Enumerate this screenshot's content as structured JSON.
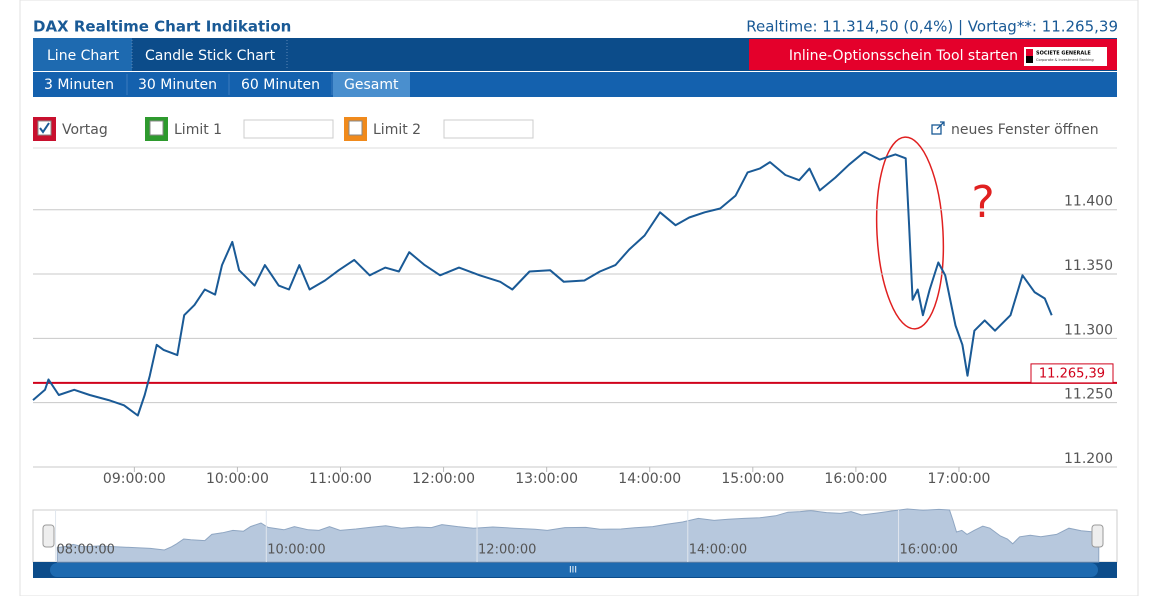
{
  "header": {
    "title": "DAX Realtime Chart Indikation",
    "quote": "Realtime: 11.314,50 (0,4%) | Vortag**: 11.265,39"
  },
  "tabs": [
    "Line Chart",
    "Candle Stick Chart"
  ],
  "tool_button": "Inline-Optionsschein Tool starten",
  "logo": {
    "name": "SOCIETE GENERALE",
    "tagline": "Corporate & Investment Banking"
  },
  "ranges": [
    "3 Minuten",
    "30 Minuten",
    "60 Minuten",
    "Gesamt"
  ],
  "options": [
    {
      "label": "Vortag",
      "checked": true,
      "color": "#c8102e"
    },
    {
      "label": "Limit 1",
      "checked": false,
      "color": "#2e9a2e"
    },
    {
      "label": "Limit 2",
      "checked": false,
      "color": "#f08a1c"
    }
  ],
  "link": "neues Fenster öffnen",
  "chart_data": {
    "type": "line",
    "x": [
      481,
      488,
      490,
      496,
      505,
      514,
      525,
      534,
      542,
      546,
      549,
      553,
      557,
      565,
      569,
      575,
      581,
      587,
      591,
      597,
      601,
      610,
      616,
      624,
      630,
      636,
      642,
      651,
      659,
      668,
      677,
      686,
      694,
      700,
      709,
      718,
      729,
      741,
      753,
      760,
      770,
      782,
      790,
      802,
      811,
      820,
      828,
      837,
      846,
      855,
      863,
      872,
      881,
      890,
      897,
      904,
      910,
      919,
      927,
      933,
      939,
      948,
      956,
      965,
      974,
      983,
      989,
      991,
      993,
      996,
      999,
      1003,
      1008,
      1012,
      1018,
      1022,
      1025,
      1029,
      1035,
      1041,
      1050,
      1057,
      1064,
      1070,
      1074
    ],
    "series": [
      {
        "color": "#1a5a96",
        "values": [
          11252,
          11260,
          11268,
          11256,
          11260,
          11256,
          11252,
          11248,
          11240,
          11256,
          11271,
          11295,
          11291,
          11287,
          11318,
          11326,
          11338,
          11334,
          11357,
          11375,
          11353,
          11341,
          11357,
          11341,
          11338,
          11357,
          11338,
          11345,
          11353,
          11361,
          11349,
          11355,
          11352,
          11367,
          11357,
          11349,
          11355,
          11349,
          11344,
          11338,
          11352,
          11353,
          11344,
          11345,
          11352,
          11357,
          11369,
          11380,
          11398,
          11388,
          11394,
          11398,
          11401,
          11411,
          11429,
          11432,
          11437,
          11427,
          11423,
          11432,
          11415,
          11425,
          11435,
          11445,
          11439,
          11443,
          11440,
          11388,
          11330,
          11338,
          11318,
          11338,
          11359,
          11349,
          11310,
          11295,
          11271,
          11306,
          11314,
          11306,
          11318,
          11349,
          11336,
          11331,
          11318
        ]
      }
    ],
    "xlim": [
      481,
      1112
    ],
    "ylim": [
      11200,
      11448
    ],
    "xticks": [
      {
        "value": 540,
        "label": "09:00:00"
      },
      {
        "value": 600,
        "label": "10:00:00"
      },
      {
        "value": 660,
        "label": "11:00:00"
      },
      {
        "value": 720,
        "label": "12:00:00"
      },
      {
        "value": 780,
        "label": "13:00:00"
      },
      {
        "value": 840,
        "label": "14:00:00"
      },
      {
        "value": 900,
        "label": "15:00:00"
      },
      {
        "value": 960,
        "label": "16:00:00"
      },
      {
        "value": 1020,
        "label": "17:00:00"
      }
    ],
    "yticks": [
      {
        "value": 11200,
        "label": "11.200"
      },
      {
        "value": 11250,
        "label": "11.250"
      },
      {
        "value": 11300,
        "label": "11.300"
      },
      {
        "value": 11350,
        "label": "11.350"
      },
      {
        "value": 11400,
        "label": "11.400"
      }
    ],
    "grid": true,
    "reference": {
      "value": 11265.39,
      "label": "11.265,39",
      "color": "#d0021b"
    },
    "annotation": "?",
    "navigator": {
      "xlim": [
        474,
        1073
      ],
      "ylim": [
        11200,
        11460
      ],
      "xticks": [
        {
          "value": 480,
          "label": "08:00:00"
        },
        {
          "value": 600,
          "label": "10:00:00"
        },
        {
          "value": 720,
          "label": "12:00:00"
        },
        {
          "value": 840,
          "label": "14:00:00"
        },
        {
          "value": 960,
          "label": "16:00:00"
        }
      ]
    }
  }
}
